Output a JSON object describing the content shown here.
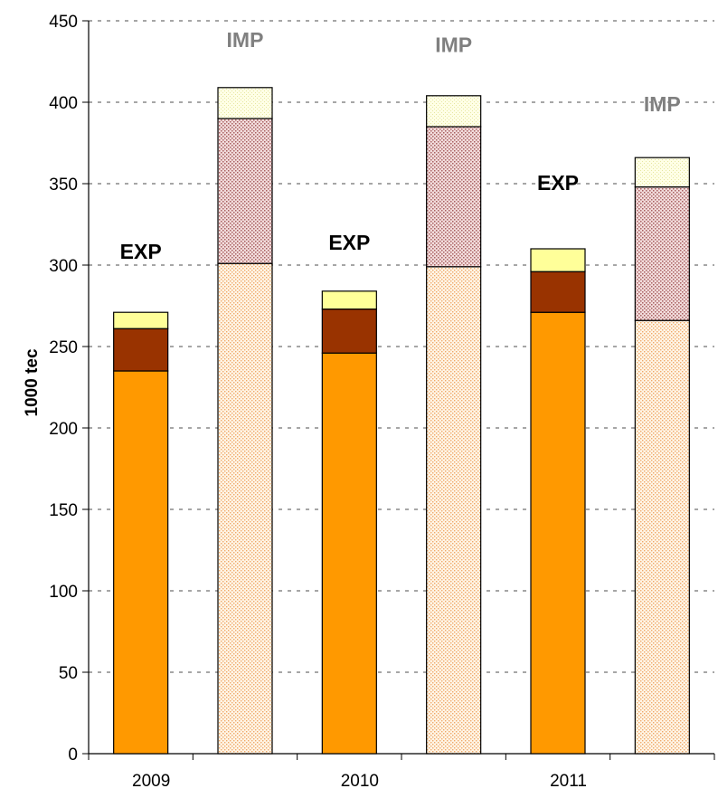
{
  "chart_data": {
    "type": "bar",
    "stacked": true,
    "title": "",
    "xlabel": "",
    "ylabel": "1000 tec",
    "ylim": [
      0,
      450
    ],
    "yticks": [
      0,
      50,
      100,
      150,
      200,
      250,
      300,
      350,
      400,
      450
    ],
    "grid": true,
    "categories": [
      "2009",
      "2010",
      "2011"
    ],
    "bar_labels": {
      "exp": "EXP",
      "imp": "IMP"
    },
    "colors": {
      "exp_segment_1": "#ff9900",
      "exp_segment_2": "#993300",
      "exp_segment_3": "#ffff99",
      "imp_segment_1": "#ffcc99",
      "imp_segment_2": "#cc9999",
      "imp_segment_3": "#ffffcc",
      "imp_label": "#808080",
      "exp_label": "#000000"
    },
    "bars": [
      {
        "year": "2009",
        "kind": "exp",
        "segments": [
          235,
          26,
          10
        ]
      },
      {
        "year": "2009",
        "kind": "imp",
        "segments": [
          301,
          89,
          19
        ]
      },
      {
        "year": "2010",
        "kind": "exp",
        "segments": [
          246,
          27,
          11
        ]
      },
      {
        "year": "2010",
        "kind": "imp",
        "segments": [
          299,
          86,
          19
        ]
      },
      {
        "year": "2011",
        "kind": "exp",
        "segments": [
          271,
          25,
          14
        ]
      },
      {
        "year": "2011",
        "kind": "imp",
        "segments": [
          266,
          82,
          18
        ]
      }
    ]
  }
}
